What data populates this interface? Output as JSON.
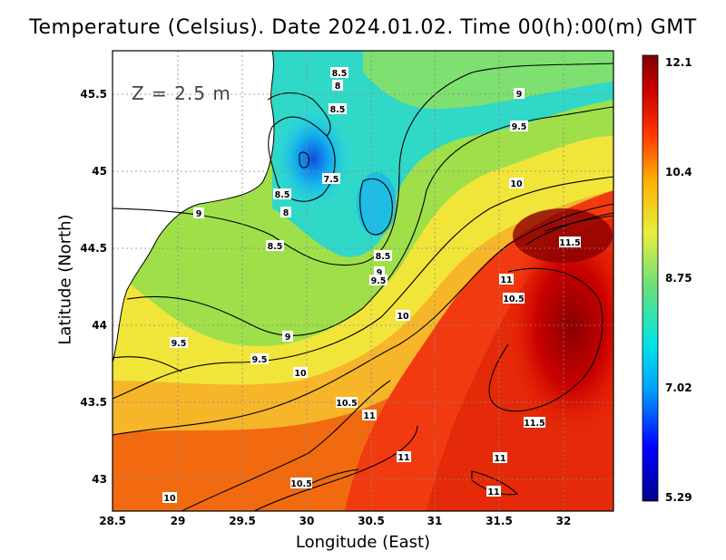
{
  "title": "Temperature (Celsius). Date 2024.01.02. Time 00(h):00(m) GMT",
  "x_axis": {
    "label": "Longitude (East)",
    "ticks": [
      "28.5",
      "29",
      "29.5",
      "30",
      "30.5",
      "31",
      "31.5",
      "32"
    ]
  },
  "y_axis": {
    "label": "Latitude (North)",
    "ticks": [
      "45.5",
      "45",
      "44.5",
      "44",
      "43.5",
      "43"
    ]
  },
  "depth_label": "Z = 2.5 m",
  "colorbar": {
    "ticks": [
      "12.1",
      "10.4",
      "8.75",
      "7.02",
      "5.29"
    ],
    "min": 5.29,
    "max": 12.1,
    "colors": [
      "#00008b",
      "#0000ff",
      "#00a0ff",
      "#00e5e5",
      "#66e07a",
      "#e6f03c",
      "#ffb000",
      "#ff3a00",
      "#cc0000",
      "#7f0000"
    ]
  },
  "contour_labels": [
    {
      "text": "8.5"
    },
    {
      "text": "8"
    },
    {
      "text": "8.5"
    },
    {
      "text": "9"
    },
    {
      "text": "9.5"
    },
    {
      "text": "10"
    },
    {
      "text": "7.5"
    },
    {
      "text": "8.5"
    },
    {
      "text": "8"
    },
    {
      "text": "9"
    },
    {
      "text": "8.5"
    },
    {
      "text": "8.5"
    },
    {
      "text": "9"
    },
    {
      "text": "9.5"
    },
    {
      "text": "11.5"
    },
    {
      "text": "11"
    },
    {
      "text": "10.5"
    },
    {
      "text": "10"
    },
    {
      "text": "9"
    },
    {
      "text": "9.5"
    },
    {
      "text": "9.5"
    },
    {
      "text": "10"
    },
    {
      "text": "10.5"
    },
    {
      "text": "11"
    },
    {
      "text": "11.5"
    },
    {
      "text": "11"
    },
    {
      "text": "11"
    },
    {
      "text": "10.5"
    },
    {
      "text": "11"
    },
    {
      "text": "10"
    }
  ]
}
